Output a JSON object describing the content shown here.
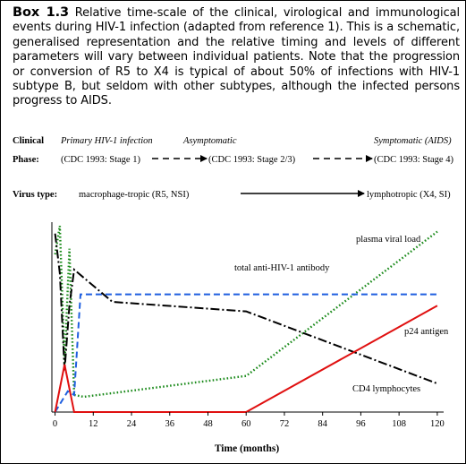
{
  "caption": {
    "label": "Box 1.3",
    "text": "Relative time-scale of the clinical, virological and immunological events during HIV-1 infection (adapted from reference 1). This is a schematic, generalised representation and the relative timing and levels of different parameters will vary between individual patients. Note that the progression or conversion of R5 to X4 is typical of about 50% of infections with HIV-1 subtype B, but seldom with other subtypes, although the infected persons progress to AIDS."
  },
  "clinical_phase": {
    "label_line1": "Clinical",
    "label_line2": "Phase:",
    "stages": [
      {
        "name": "Primary HIV-1 infection",
        "cdc": "(CDC 1993: Stage 1)"
      },
      {
        "name": "Asymptomatic",
        "cdc": "(CDC 1993: Stage 2/3)"
      },
      {
        "name": "Symptomatic (AIDS)",
        "cdc": "(CDC 1993: Stage 4)"
      }
    ]
  },
  "virus_type": {
    "label": "Virus type:",
    "start": "macrophage-tropic (R5, NSI)",
    "end": "lymphotropic (X4, SI)"
  },
  "chart_data": {
    "type": "line",
    "xlabel": "Time (months)",
    "ylabel": "",
    "xticks": [
      0,
      12,
      24,
      36,
      48,
      60,
      72,
      84,
      96,
      108,
      120
    ],
    "xlim": [
      -1,
      122
    ],
    "ylim": [
      0,
      100
    ],
    "series": [
      {
        "name": "plasma viral load",
        "color": "#1a8a1a",
        "style": "dotted",
        "points": [
          [
            0,
            83
          ],
          [
            1.5,
            98
          ],
          [
            3,
            25
          ],
          [
            4.5,
            86
          ],
          [
            6,
            9
          ],
          [
            9,
            8
          ],
          [
            60,
            19
          ],
          [
            120,
            95
          ]
        ]
      },
      {
        "name": "total anti-HIV-1 antibody",
        "color": "#1f5fe0",
        "style": "dashed",
        "points": [
          [
            0,
            0
          ],
          [
            4,
            11
          ],
          [
            6,
            9
          ],
          [
            8,
            62
          ],
          [
            120,
            62
          ]
        ]
      },
      {
        "name": "p24 antigen",
        "color": "#000000",
        "style": "dashdot",
        "points": [
          [
            0,
            94
          ],
          [
            1.5,
            73
          ],
          [
            3,
            22
          ],
          [
            4.5,
            56
          ],
          [
            6,
            75
          ],
          [
            18,
            58
          ],
          [
            60,
            53
          ],
          [
            120,
            15
          ]
        ]
      },
      {
        "name": "CD4 lymphocytes",
        "color": "#e01010",
        "style": "solid",
        "points": [
          [
            0,
            0
          ],
          [
            3,
            25
          ],
          [
            6,
            0
          ],
          [
            60,
            0
          ],
          [
            120,
            56
          ]
        ]
      }
    ]
  }
}
